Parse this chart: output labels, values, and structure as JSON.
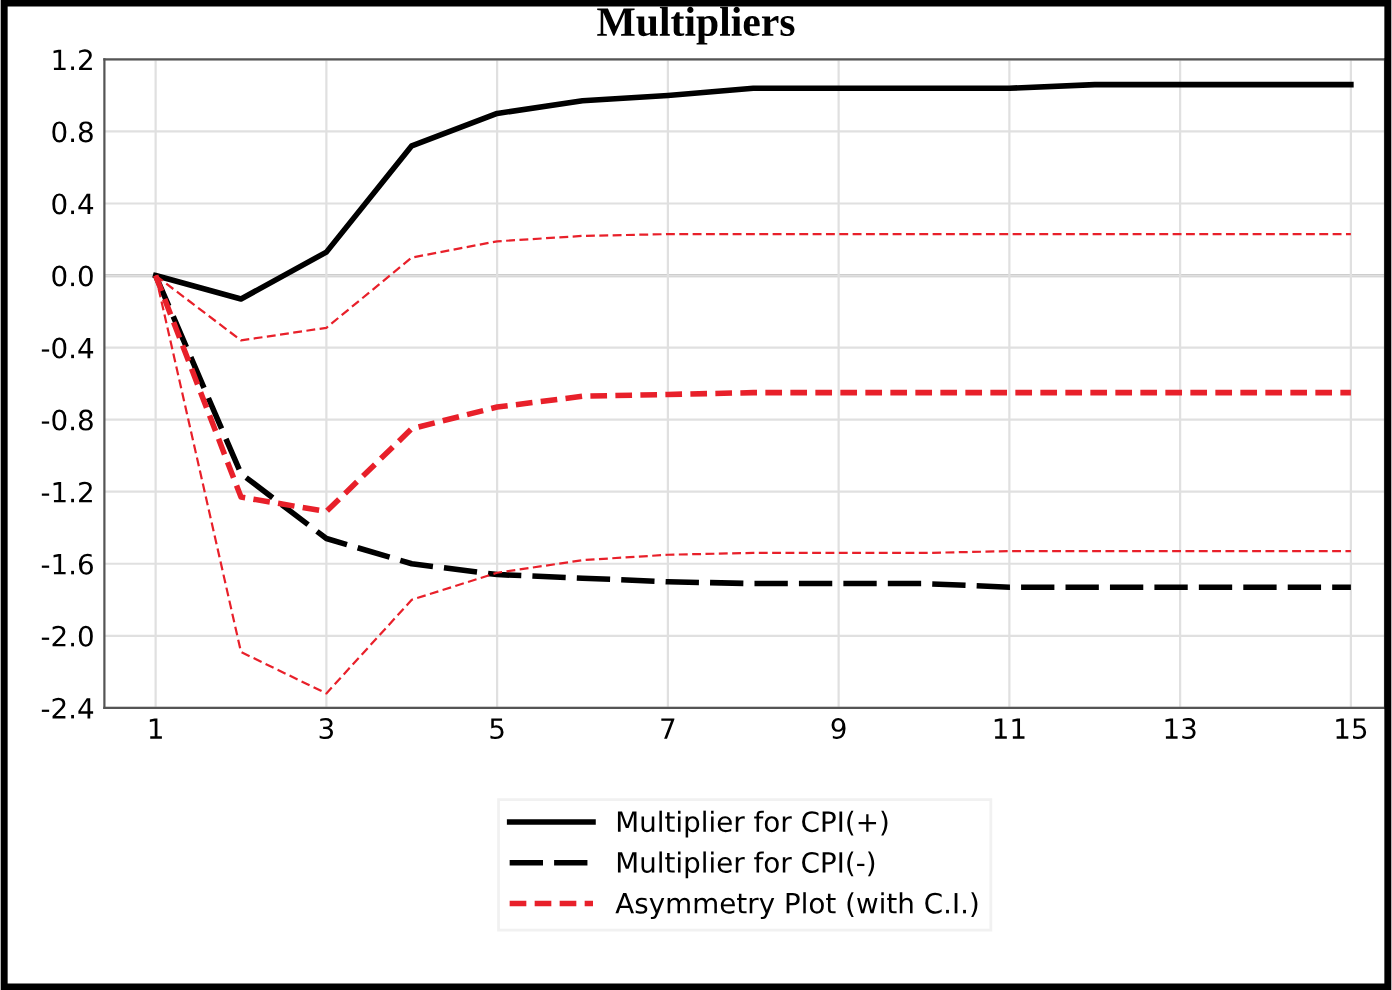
{
  "chart_data": {
    "type": "line",
    "title": "Multipliers",
    "x": [
      1,
      2,
      3,
      4,
      5,
      6,
      7,
      8,
      9,
      10,
      11,
      12,
      13,
      14,
      15
    ],
    "xlim": [
      0.4,
      15.4
    ],
    "xticks": [
      1,
      3,
      5,
      7,
      9,
      11,
      13,
      15
    ],
    "ylim": [
      -2.4,
      1.2
    ],
    "yticks": [
      {
        "value": -2.4,
        "label": "-2.4"
      },
      {
        "value": -2.0,
        "label": "-2.0"
      },
      {
        "value": -1.6,
        "label": "-1.6"
      },
      {
        "value": -1.2,
        "label": "-1.2"
      },
      {
        "value": -0.8,
        "label": "-0.8"
      },
      {
        "value": -0.4,
        "label": "-0.4"
      },
      {
        "value": 0,
        "label": "0.0"
      },
      {
        "value": 0.4,
        "label": "0.4"
      },
      {
        "value": 0.8,
        "label": "0.8"
      },
      {
        "value": 1.2,
        "label": "1.2"
      }
    ],
    "grid": true,
    "legend": "bottom",
    "marker": "none",
    "series": [
      {
        "name": "Multiplier for CPI(+)",
        "color": "#000000",
        "line_style": "solid",
        "values": [
          0,
          -0.13,
          0.13,
          0.72,
          0.9,
          0.97,
          1.0,
          1.04,
          1.04,
          1.04,
          1.04,
          1.06,
          1.06,
          1.06,
          1.06
        ]
      },
      {
        "name": "Multiplier for CPI(-)",
        "color": "#000000",
        "line_style": "dashed",
        "values": [
          0,
          -1.1,
          -1.46,
          -1.6,
          -1.66,
          -1.68,
          -1.7,
          -1.71,
          -1.71,
          -1.71,
          -1.73,
          -1.73,
          -1.73,
          -1.73,
          -1.73
        ]
      },
      {
        "name": "Asymmetry Plot (with C.I.)",
        "color": "#e8202a",
        "line_style": "dashed",
        "values": [
          0,
          -1.23,
          -1.31,
          -0.85,
          -0.73,
          -0.67,
          -0.66,
          -0.65,
          -0.65,
          -0.65,
          -0.65,
          -0.65,
          -0.65,
          -0.65,
          -0.65
        ]
      },
      {
        "color": "#e8202a",
        "line_style": "dashed",
        "values": [
          0,
          -0.36,
          -0.29,
          0.1,
          0.19,
          0.22,
          0.23,
          0.23,
          0.23,
          0.23,
          0.23,
          0.23,
          0.23,
          0.23,
          0.23
        ]
      },
      {
        "color": "#e8202a",
        "line_style": "dashed",
        "values": [
          0,
          -2.09,
          -2.32,
          -1.8,
          -1.65,
          -1.58,
          -1.55,
          -1.54,
          -1.54,
          -1.54,
          -1.53,
          -1.53,
          -1.53,
          -1.53,
          -1.53
        ]
      }
    ]
  }
}
